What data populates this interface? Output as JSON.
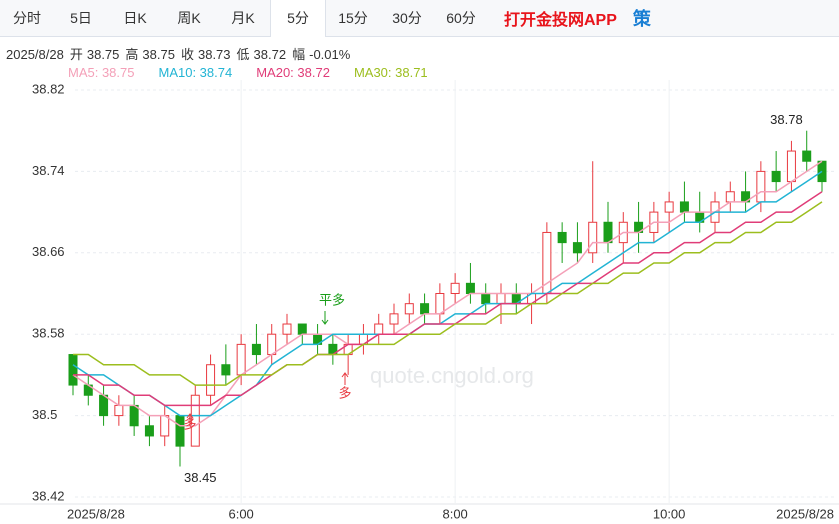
{
  "tabs": [
    "分时",
    "5日",
    "日K",
    "周K",
    "月K",
    "5分",
    "15分",
    "30分",
    "60分"
  ],
  "active_tab": 5,
  "promo": "打开金投网APP",
  "icon": "策",
  "info": {
    "date": "2025/8/28",
    "items": [
      {
        "label": "开",
        "value": 38.75
      },
      {
        "label": "高",
        "value": 38.75
      },
      {
        "label": "收",
        "value": 38.73
      },
      {
        "label": "低",
        "value": 38.72
      },
      {
        "label": "幅",
        "value": "-0.01%"
      }
    ]
  },
  "chart_data": {
    "type": "candlestick",
    "watermark": "quote.cngold.org",
    "categories": [
      "2025/8/28",
      null,
      null,
      null,
      null,
      null,
      null,
      null,
      null,
      null,
      null,
      "6:00",
      null,
      null,
      null,
      null,
      null,
      null,
      null,
      null,
      null,
      null,
      null,
      null,
      null,
      "8:00",
      null,
      null,
      null,
      null,
      null,
      null,
      null,
      null,
      null,
      null,
      null,
      null,
      null,
      "10:00",
      null,
      null,
      null,
      null,
      null,
      null,
      null,
      null,
      null,
      "2025/8/28"
    ],
    "open": [
      38.56,
      38.53,
      38.52,
      38.5,
      38.51,
      38.49,
      38.48,
      38.5,
      38.47,
      38.52,
      38.55,
      38.54,
      38.57,
      38.56,
      38.58,
      38.59,
      38.58,
      38.57,
      38.56,
      38.57,
      38.58,
      38.59,
      38.6,
      38.61,
      38.6,
      38.62,
      38.63,
      38.62,
      38.61,
      38.62,
      38.61,
      38.62,
      38.68,
      38.67,
      38.66,
      38.69,
      38.67,
      38.69,
      38.68,
      38.7,
      38.71,
      38.7,
      38.69,
      38.71,
      38.72,
      38.71,
      38.74,
      38.73,
      38.76,
      38.75
    ],
    "high": [
      38.56,
      38.54,
      38.53,
      38.52,
      38.52,
      38.5,
      38.51,
      38.5,
      38.53,
      38.56,
      38.57,
      38.58,
      38.59,
      38.59,
      38.6,
      38.59,
      38.59,
      38.58,
      38.58,
      38.59,
      38.6,
      38.61,
      38.62,
      38.62,
      38.63,
      38.64,
      38.65,
      38.63,
      38.63,
      38.63,
      38.63,
      38.69,
      38.69,
      38.69,
      38.75,
      38.71,
      38.7,
      38.71,
      38.71,
      38.72,
      38.73,
      38.72,
      38.72,
      38.73,
      38.74,
      38.75,
      38.76,
      38.77,
      38.78,
      38.75
    ],
    "low": [
      38.52,
      38.51,
      38.49,
      38.49,
      38.48,
      38.47,
      38.47,
      38.45,
      38.47,
      38.51,
      38.53,
      38.53,
      38.55,
      38.55,
      38.57,
      38.57,
      38.56,
      38.55,
      38.54,
      38.56,
      38.57,
      38.58,
      38.59,
      38.59,
      38.59,
      38.61,
      38.61,
      38.6,
      38.59,
      38.6,
      38.59,
      38.61,
      38.65,
      38.65,
      38.65,
      38.66,
      38.65,
      38.66,
      38.67,
      38.68,
      38.69,
      38.68,
      38.68,
      38.7,
      38.7,
      38.7,
      38.72,
      38.72,
      38.74,
      38.72
    ],
    "close": [
      38.53,
      38.52,
      38.5,
      38.51,
      38.49,
      38.48,
      38.5,
      38.47,
      38.52,
      38.55,
      38.54,
      38.57,
      38.56,
      38.58,
      38.59,
      38.58,
      38.57,
      38.56,
      38.57,
      38.58,
      38.59,
      38.6,
      38.61,
      38.6,
      38.62,
      38.63,
      38.62,
      38.61,
      38.62,
      38.61,
      38.62,
      38.68,
      38.67,
      38.66,
      38.69,
      38.67,
      38.69,
      38.68,
      38.7,
      38.71,
      38.7,
      38.69,
      38.71,
      38.72,
      38.71,
      38.74,
      38.73,
      38.76,
      38.75,
      38.73
    ],
    "up_color": "#e8393f",
    "down_color": "#1a9e1a",
    "series": [
      {
        "name": "MA5",
        "legend_label": "MA5: 38.75",
        "color": "#f4a0b8",
        "values": [
          38.54,
          38.53,
          38.52,
          38.51,
          38.51,
          38.5,
          38.5,
          38.49,
          38.49,
          38.5,
          38.52,
          38.54,
          38.55,
          38.56,
          38.57,
          38.58,
          38.58,
          38.58,
          38.57,
          38.57,
          38.58,
          38.58,
          38.59,
          38.6,
          38.6,
          38.61,
          38.62,
          38.62,
          38.62,
          38.62,
          38.62,
          38.63,
          38.64,
          38.65,
          38.67,
          38.67,
          38.68,
          38.68,
          38.69,
          38.69,
          38.7,
          38.7,
          38.7,
          38.71,
          38.71,
          38.72,
          38.72,
          38.73,
          38.74,
          38.75
        ]
      },
      {
        "name": "MA10",
        "legend_label": "MA10: 38.74",
        "color": "#22b4d4",
        "values": [
          38.55,
          38.54,
          38.54,
          38.53,
          38.52,
          38.52,
          38.51,
          38.5,
          38.5,
          38.5,
          38.51,
          38.52,
          38.53,
          38.55,
          38.56,
          38.57,
          38.57,
          38.58,
          38.58,
          38.58,
          38.58,
          38.58,
          38.58,
          38.59,
          38.59,
          38.6,
          38.6,
          38.61,
          38.61,
          38.61,
          38.62,
          38.62,
          38.63,
          38.63,
          38.64,
          38.65,
          38.66,
          38.67,
          38.67,
          38.68,
          38.69,
          38.69,
          38.7,
          38.7,
          38.7,
          38.71,
          38.71,
          38.72,
          38.73,
          38.74
        ]
      },
      {
        "name": "MA20",
        "legend_label": "MA20: 38.72",
        "color": "#e03c78",
        "values": [
          38.54,
          38.54,
          38.53,
          38.53,
          38.52,
          38.52,
          38.51,
          38.51,
          38.51,
          38.51,
          38.52,
          38.52,
          38.53,
          38.54,
          38.55,
          38.55,
          38.56,
          38.56,
          38.57,
          38.57,
          38.58,
          38.58,
          38.58,
          38.59,
          38.59,
          38.59,
          38.6,
          38.6,
          38.61,
          38.61,
          38.61,
          38.62,
          38.62,
          38.63,
          38.63,
          38.64,
          38.65,
          38.65,
          38.66,
          38.66,
          38.67,
          38.67,
          38.68,
          38.68,
          38.69,
          38.69,
          38.7,
          38.7,
          38.71,
          38.72
        ]
      },
      {
        "name": "MA30",
        "legend_label": "MA30: 38.71",
        "color": "#9cbe1e",
        "values": [
          38.56,
          38.56,
          38.55,
          38.55,
          38.55,
          38.54,
          38.54,
          38.54,
          38.53,
          38.53,
          38.53,
          38.54,
          38.54,
          38.54,
          38.55,
          38.55,
          38.56,
          38.56,
          38.56,
          38.57,
          38.57,
          38.57,
          38.58,
          38.58,
          38.58,
          38.59,
          38.59,
          38.59,
          38.6,
          38.6,
          38.61,
          38.61,
          38.62,
          38.62,
          38.63,
          38.63,
          38.64,
          38.64,
          38.65,
          38.65,
          38.66,
          38.66,
          38.67,
          38.67,
          38.68,
          38.68,
          38.69,
          38.69,
          38.7,
          38.71
        ]
      }
    ],
    "annotations": [
      {
        "text": "平多",
        "color": "#1a9e1a"
      },
      {
        "text": "多",
        "color": "#e8393f"
      },
      {
        "text": "多",
        "color": "#e8393f"
      }
    ],
    "ylim": [
      38.42,
      38.82
    ],
    "yticks": [
      38.42,
      38.5,
      38.58,
      38.66,
      38.74,
      38.82
    ],
    "grid": true
  }
}
